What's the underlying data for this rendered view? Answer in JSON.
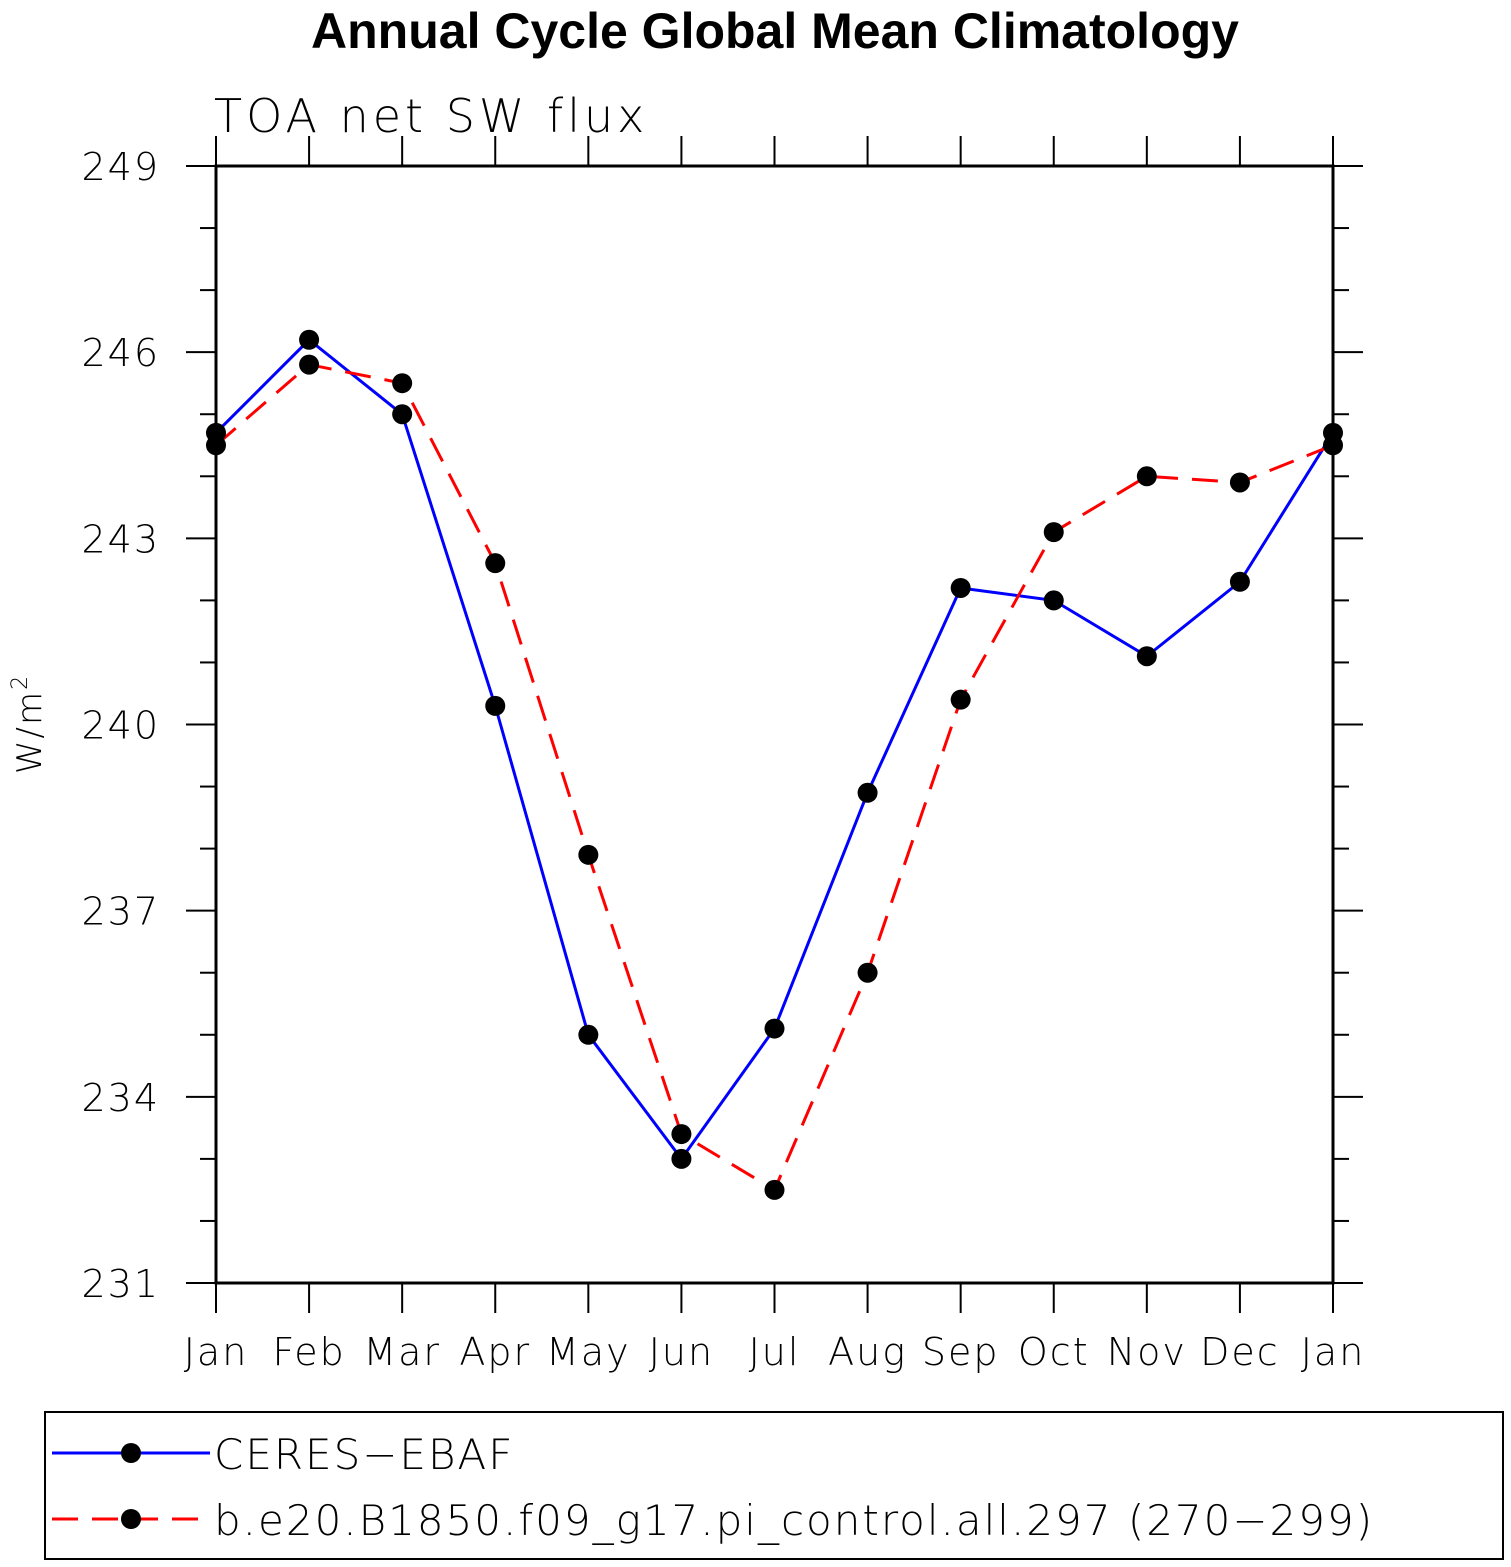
{
  "chart_data": {
    "type": "line",
    "title": "Annual Cycle Global Mean Climatology",
    "subtitle": "TOA net SW flux",
    "xlabel": "",
    "ylabel": "W/m",
    "ylabel_sup": "2",
    "ylim": [
      231,
      249
    ],
    "yticks": [
      231,
      234,
      237,
      240,
      243,
      246,
      249
    ],
    "categories": [
      "Jan",
      "Feb",
      "Mar",
      "Apr",
      "May",
      "Jun",
      "Jul",
      "Aug",
      "Sep",
      "Oct",
      "Nov",
      "Dec",
      "Jan"
    ],
    "legend_position": "bottom",
    "series": [
      {
        "name": "CERES−EBAF",
        "color": "#0000ff",
        "dash": "solid",
        "marker": "filled-circle",
        "values": [
          244.7,
          246.2,
          245.0,
          240.3,
          235.0,
          233.0,
          235.1,
          238.9,
          242.2,
          242.0,
          241.1,
          242.3,
          244.7
        ]
      },
      {
        "name": "b.e20.B1850.f09_g17.pi_control.all.297 (270−299)",
        "color": "#ff0000",
        "dash": "dashed",
        "marker": "filled-circle",
        "values": [
          244.5,
          245.8,
          245.5,
          242.6,
          237.9,
          233.4,
          232.5,
          236.0,
          240.4,
          243.1,
          244.0,
          243.9,
          244.5
        ]
      }
    ]
  }
}
